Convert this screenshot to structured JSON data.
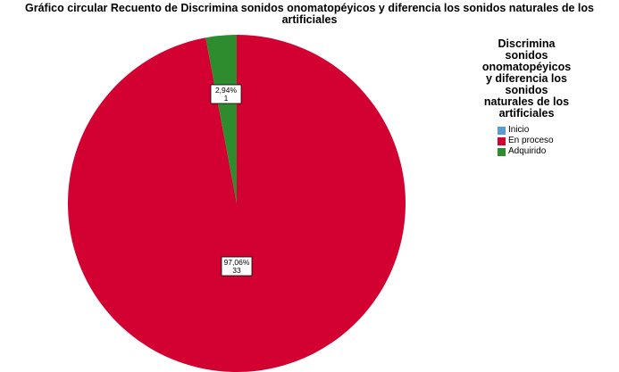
{
  "chart_data": {
    "type": "pie",
    "title": "Gráfico circular Recuento de Discrimina sonidos onomatopéyicos y diferencia los sonidos naturales de los artificiales",
    "categories": [
      "Inicio",
      "En proceso",
      "Adquirido"
    ],
    "values": [
      0,
      33,
      1
    ],
    "percent_labels": [
      "",
      "97,06%",
      "2,94%"
    ],
    "count_labels": [
      "",
      "33",
      "1"
    ],
    "colors": [
      "#5A9BD4",
      "#D30032",
      "#2E8B2E"
    ],
    "legend": {
      "title": "Discrimina sonidos onomatopéyicos y diferencia los sonidos naturales de los artificiales",
      "placement": "right"
    }
  }
}
